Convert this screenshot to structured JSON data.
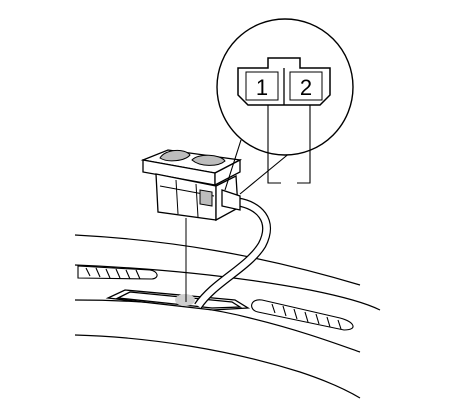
{
  "connector_callout": {
    "terminal_1": "1",
    "terminal_2": "2"
  },
  "colors": {
    "line": "#000000",
    "background": "#ffffff",
    "shade": "#bdbdbd"
  },
  "icons": [
    "switch-assembly-icon",
    "wire-harness-icon",
    "connector-pinout-callout"
  ]
}
